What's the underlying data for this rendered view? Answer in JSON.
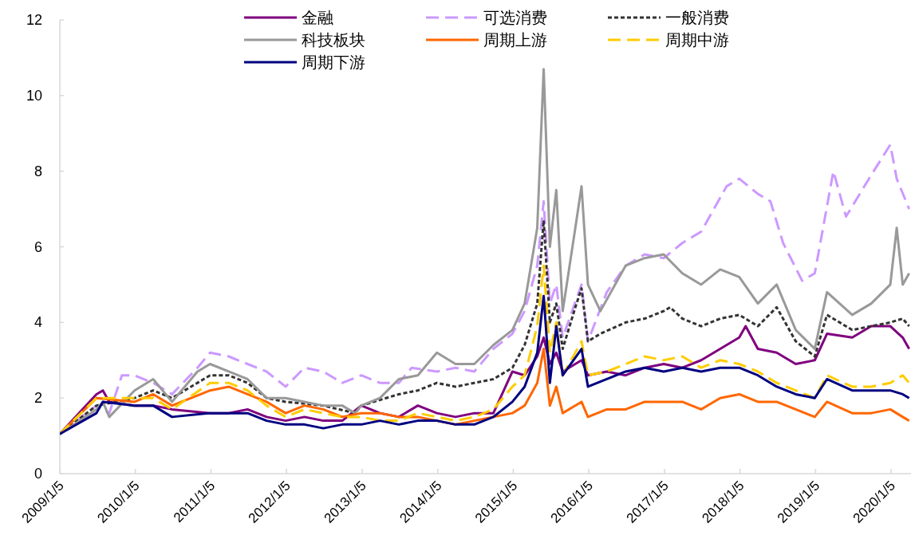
{
  "chart_data": {
    "type": "line",
    "xlim": [
      "2009-01-05",
      "2020-04-10"
    ],
    "ylim": [
      0,
      12
    ],
    "yticks": [
      0,
      2,
      4,
      6,
      8,
      10,
      12
    ],
    "xticks": [
      {
        "value": "2009-01-05",
        "label": "2009/1/5"
      },
      {
        "value": "2010-01-05",
        "label": "2010/1/5"
      },
      {
        "value": "2011-01-05",
        "label": "2011/1/5"
      },
      {
        "value": "2012-01-05",
        "label": "2012/1/5"
      },
      {
        "value": "2013-01-05",
        "label": "2013/1/5"
      },
      {
        "value": "2014-01-05",
        "label": "2014/1/5"
      },
      {
        "value": "2015-01-05",
        "label": "2015/1/5"
      },
      {
        "value": "2016-01-05",
        "label": "2016/1/5"
      },
      {
        "value": "2017-01-05",
        "label": "2017/1/5"
      },
      {
        "value": "2018-01-05",
        "label": "2018/1/5"
      },
      {
        "value": "2019-01-05",
        "label": "2019/1/5"
      },
      {
        "value": "2020-01-05",
        "label": "2020/1/5"
      }
    ],
    "grid": false,
    "legend": "top",
    "marker": "none",
    "series": [
      {
        "name": "金融",
        "color": "#7f007f",
        "line_style": "solid",
        "x": [
          "2009-01-05",
          "2009-07",
          "2009-08",
          "2009-09",
          "2010-01",
          "2010-04",
          "2010-07",
          "2011-01",
          "2011-04",
          "2011-07",
          "2011-10",
          "2012-01",
          "2012-04",
          "2012-07",
          "2012-10",
          "2013-01",
          "2013-04",
          "2013-07",
          "2013-10",
          "2014-01",
          "2014-04",
          "2014-07",
          "2014-10",
          "2015-01",
          "2015-03",
          "2015-05",
          "2015-06",
          "2015-07",
          "2015-08",
          "2015-09",
          "2015-12",
          "2016-01",
          "2016-04",
          "2016-07",
          "2016-10",
          "2017-01",
          "2017-04",
          "2017-07",
          "2017-10",
          "2018-01",
          "2018-02",
          "2018-04",
          "2018-07",
          "2018-10",
          "2019-01",
          "2019-03",
          "2019-07",
          "2019-10",
          "2020-01",
          "2020-03",
          "2020-04"
        ],
        "values": [
          1.05,
          2.1,
          2.2,
          1.9,
          1.8,
          1.8,
          1.7,
          1.6,
          1.6,
          1.7,
          1.5,
          1.4,
          1.5,
          1.4,
          1.4,
          1.8,
          1.6,
          1.5,
          1.8,
          1.6,
          1.5,
          1.6,
          1.6,
          2.7,
          2.6,
          3.1,
          3.6,
          2.9,
          3.2,
          2.7,
          3.0,
          2.6,
          2.7,
          2.6,
          2.8,
          2.9,
          2.8,
          3.0,
          3.3,
          3.6,
          3.9,
          3.3,
          3.2,
          2.9,
          3.0,
          3.7,
          3.6,
          3.9,
          3.9,
          3.6,
          3.3
        ]
      },
      {
        "name": "可选消费",
        "color": "#cc99ff",
        "line_style": "dashed",
        "x": [
          "2009-01-05",
          "2009-07",
          "2009-09",
          "2009-11",
          "2010-01",
          "2010-04",
          "2010-07",
          "2010-11",
          "2011-01",
          "2011-04",
          "2011-07",
          "2011-10",
          "2012-01",
          "2012-04",
          "2012-07",
          "2012-10",
          "2013-01",
          "2013-04",
          "2013-07",
          "2013-09",
          "2014-01",
          "2014-04",
          "2014-07",
          "2014-10",
          "2015-01",
          "2015-03",
          "2015-05",
          "2015-06",
          "2015-07",
          "2015-08",
          "2015-09",
          "2015-12",
          "2016-01",
          "2016-04",
          "2016-07",
          "2016-10",
          "2017-01",
          "2017-04",
          "2017-07",
          "2017-11",
          "2018-01",
          "2018-04",
          "2018-06",
          "2018-08",
          "2018-11",
          "2019-01",
          "2019-04",
          "2019-06",
          "2019-10",
          "2020-01",
          "2020-02",
          "2020-04"
        ],
        "values": [
          1.05,
          1.8,
          1.6,
          2.6,
          2.6,
          2.4,
          2.1,
          2.8,
          3.2,
          3.1,
          2.9,
          2.7,
          2.3,
          2.8,
          2.7,
          2.4,
          2.6,
          2.4,
          2.4,
          2.8,
          2.7,
          2.8,
          2.7,
          3.3,
          3.7,
          4.3,
          5.5,
          7.2,
          4.5,
          5.0,
          3.6,
          5.0,
          3.5,
          4.8,
          5.5,
          5.8,
          5.7,
          6.1,
          6.4,
          7.6,
          7.8,
          7.4,
          7.2,
          6.1,
          5.1,
          5.3,
          8.0,
          6.8,
          7.9,
          8.7,
          7.8,
          7.0
        ]
      },
      {
        "name": "一般消费",
        "color": "#333333",
        "line_style": "dotted",
        "x": [
          "2009-01-05",
          "2009-07",
          "2010-01",
          "2010-04",
          "2010-07",
          "2011-01",
          "2011-04",
          "2011-07",
          "2011-10",
          "2012-01",
          "2012-07",
          "2012-12",
          "2013-01",
          "2013-07",
          "2013-10",
          "2014-01",
          "2014-04",
          "2014-07",
          "2014-10",
          "2015-01",
          "2015-03",
          "2015-05",
          "2015-06",
          "2015-07",
          "2015-08",
          "2015-09",
          "2015-11",
          "2015-12",
          "2016-01",
          "2016-03",
          "2016-07",
          "2016-10",
          "2017-01",
          "2017-02",
          "2017-04",
          "2017-07",
          "2017-10",
          "2018-01",
          "2018-04",
          "2018-07",
          "2018-10",
          "2019-01",
          "2019-03",
          "2019-07",
          "2019-10",
          "2020-01",
          "2020-03",
          "2020-04"
        ],
        "values": [
          1.05,
          1.8,
          2.0,
          2.2,
          2.0,
          2.6,
          2.6,
          2.4,
          2.0,
          1.9,
          1.8,
          1.6,
          1.8,
          2.1,
          2.2,
          2.4,
          2.3,
          2.4,
          2.5,
          2.8,
          3.4,
          4.5,
          6.7,
          4.0,
          4.5,
          3.3,
          4.4,
          4.9,
          3.5,
          3.7,
          4.0,
          4.1,
          4.3,
          4.4,
          4.1,
          3.9,
          4.1,
          4.2,
          3.9,
          4.4,
          3.5,
          3.1,
          4.2,
          3.8,
          3.9,
          4.0,
          4.1,
          3.9
        ]
      },
      {
        "name": "科技板块",
        "color": "#999999",
        "line_style": "solid",
        "x": [
          "2009-01-05",
          "2009-07",
          "2009-08",
          "2009-09",
          "2010-01",
          "2010-04",
          "2010-07",
          "2010-11",
          "2011-01",
          "2011-04",
          "2011-07",
          "2011-10",
          "2012-01",
          "2012-04",
          "2012-07",
          "2012-10",
          "2012-12",
          "2013-01",
          "2013-04",
          "2013-07",
          "2013-10",
          "2014-01",
          "2014-04",
          "2014-07",
          "2014-10",
          "2015-01",
          "2015-03",
          "2015-05",
          "2015-06",
          "2015-07",
          "2015-08",
          "2015-09",
          "2015-11",
          "2015-12",
          "2016-01",
          "2016-03",
          "2016-07",
          "2016-10",
          "2017-01",
          "2017-04",
          "2017-07",
          "2017-10",
          "2018-01",
          "2018-04",
          "2018-07",
          "2018-10",
          "2019-01",
          "2019-03",
          "2019-07",
          "2019-10",
          "2020-01",
          "2020-02",
          "2020-03",
          "2020-04"
        ],
        "values": [
          1.05,
          1.7,
          1.9,
          1.5,
          2.2,
          2.5,
          1.9,
          2.7,
          2.9,
          2.7,
          2.5,
          2.0,
          2.0,
          1.9,
          1.8,
          1.8,
          1.6,
          1.8,
          2.0,
          2.5,
          2.6,
          3.2,
          2.9,
          2.9,
          3.4,
          3.8,
          4.5,
          6.5,
          10.7,
          6.0,
          7.5,
          4.3,
          6.5,
          7.6,
          5.0,
          4.3,
          5.5,
          5.7,
          5.8,
          5.3,
          5.0,
          5.4,
          5.2,
          4.5,
          5.0,
          3.8,
          3.3,
          4.8,
          4.2,
          4.5,
          5.0,
          6.5,
          5.0,
          5.3
        ]
      },
      {
        "name": "周期上游",
        "color": "#ff6600",
        "line_style": "solid",
        "x": [
          "2009-01-05",
          "2009-07",
          "2010-01",
          "2010-04",
          "2010-07",
          "2011-01",
          "2011-04",
          "2011-07",
          "2011-10",
          "2012-01",
          "2012-04",
          "2012-07",
          "2012-10",
          "2013-01",
          "2013-04",
          "2013-07",
          "2013-10",
          "2014-01",
          "2014-04",
          "2014-07",
          "2014-10",
          "2015-01",
          "2015-03",
          "2015-05",
          "2015-06",
          "2015-07",
          "2015-08",
          "2015-09",
          "2015-12",
          "2016-01",
          "2016-04",
          "2016-07",
          "2016-10",
          "2017-01",
          "2017-04",
          "2017-07",
          "2017-10",
          "2018-01",
          "2018-04",
          "2018-07",
          "2018-10",
          "2019-01",
          "2019-03",
          "2019-07",
          "2019-10",
          "2020-01",
          "2020-03",
          "2020-04"
        ],
        "values": [
          1.05,
          2.0,
          1.9,
          2.1,
          1.8,
          2.2,
          2.3,
          2.1,
          1.9,
          1.6,
          1.8,
          1.7,
          1.5,
          1.6,
          1.6,
          1.5,
          1.5,
          1.4,
          1.3,
          1.4,
          1.5,
          1.6,
          1.8,
          2.4,
          3.3,
          1.8,
          2.3,
          1.6,
          1.9,
          1.5,
          1.7,
          1.7,
          1.9,
          1.9,
          1.9,
          1.7,
          2.0,
          2.1,
          1.9,
          1.9,
          1.7,
          1.5,
          1.9,
          1.6,
          1.6,
          1.7,
          1.5,
          1.4
        ]
      },
      {
        "name": "周期中游",
        "color": "#ffcc00",
        "line_style": "dashed",
        "x": [
          "2009-01-05",
          "2009-07",
          "2010-01",
          "2010-04",
          "2010-07",
          "2011-01",
          "2011-04",
          "2011-07",
          "2011-10",
          "2012-01",
          "2012-04",
          "2012-07",
          "2012-10",
          "2013-01",
          "2013-04",
          "2013-07",
          "2013-10",
          "2014-01",
          "2014-04",
          "2014-07",
          "2014-10",
          "2015-01",
          "2015-03",
          "2015-05",
          "2015-06",
          "2015-07",
          "2015-08",
          "2015-09",
          "2015-12",
          "2016-01",
          "2016-04",
          "2016-07",
          "2016-10",
          "2017-01",
          "2017-04",
          "2017-07",
          "2017-10",
          "2018-01",
          "2018-04",
          "2018-07",
          "2018-10",
          "2019-01",
          "2019-03",
          "2019-07",
          "2019-10",
          "2020-01",
          "2020-03",
          "2020-04"
        ],
        "values": [
          1.05,
          2.0,
          2.0,
          2.0,
          1.7,
          2.4,
          2.4,
          2.2,
          1.8,
          1.5,
          1.7,
          1.6,
          1.5,
          1.5,
          1.4,
          1.4,
          1.6,
          1.5,
          1.4,
          1.5,
          1.7,
          2.3,
          2.6,
          3.9,
          5.5,
          3.2,
          4.0,
          2.6,
          3.5,
          2.6,
          2.7,
          2.9,
          3.1,
          3.0,
          3.1,
          2.8,
          3.0,
          2.9,
          2.7,
          2.4,
          2.2,
          2.0,
          2.6,
          2.3,
          2.3,
          2.4,
          2.6,
          2.4
        ]
      },
      {
        "name": "周期下游",
        "color": "#000080",
        "line_style": "solid",
        "x": [
          "2009-01-05",
          "2009-07",
          "2009-08",
          "2010-01",
          "2010-04",
          "2010-07",
          "2011-01",
          "2011-04",
          "2011-07",
          "2011-10",
          "2012-01",
          "2012-04",
          "2012-07",
          "2012-10",
          "2013-01",
          "2013-04",
          "2013-07",
          "2013-10",
          "2014-01",
          "2014-04",
          "2014-07",
          "2014-10",
          "2015-01",
          "2015-03",
          "2015-05",
          "2015-06",
          "2015-07",
          "2015-08",
          "2015-09",
          "2015-12",
          "2016-01",
          "2016-04",
          "2016-07",
          "2016-10",
          "2017-01",
          "2017-04",
          "2017-07",
          "2017-10",
          "2018-01",
          "2018-04",
          "2018-07",
          "2018-10",
          "2019-01",
          "2019-03",
          "2019-07",
          "2019-10",
          "2020-01",
          "2020-03",
          "2020-04"
        ],
        "values": [
          1.05,
          1.6,
          1.9,
          1.8,
          1.8,
          1.5,
          1.6,
          1.6,
          1.6,
          1.4,
          1.3,
          1.3,
          1.2,
          1.3,
          1.3,
          1.4,
          1.3,
          1.4,
          1.4,
          1.3,
          1.3,
          1.5,
          1.9,
          2.3,
          3.2,
          4.7,
          2.4,
          3.9,
          2.6,
          3.3,
          2.3,
          2.5,
          2.7,
          2.8,
          2.7,
          2.8,
          2.7,
          2.8,
          2.8,
          2.6,
          2.3,
          2.1,
          2.0,
          2.5,
          2.2,
          2.2,
          2.2,
          2.1,
          2.0
        ]
      }
    ]
  }
}
